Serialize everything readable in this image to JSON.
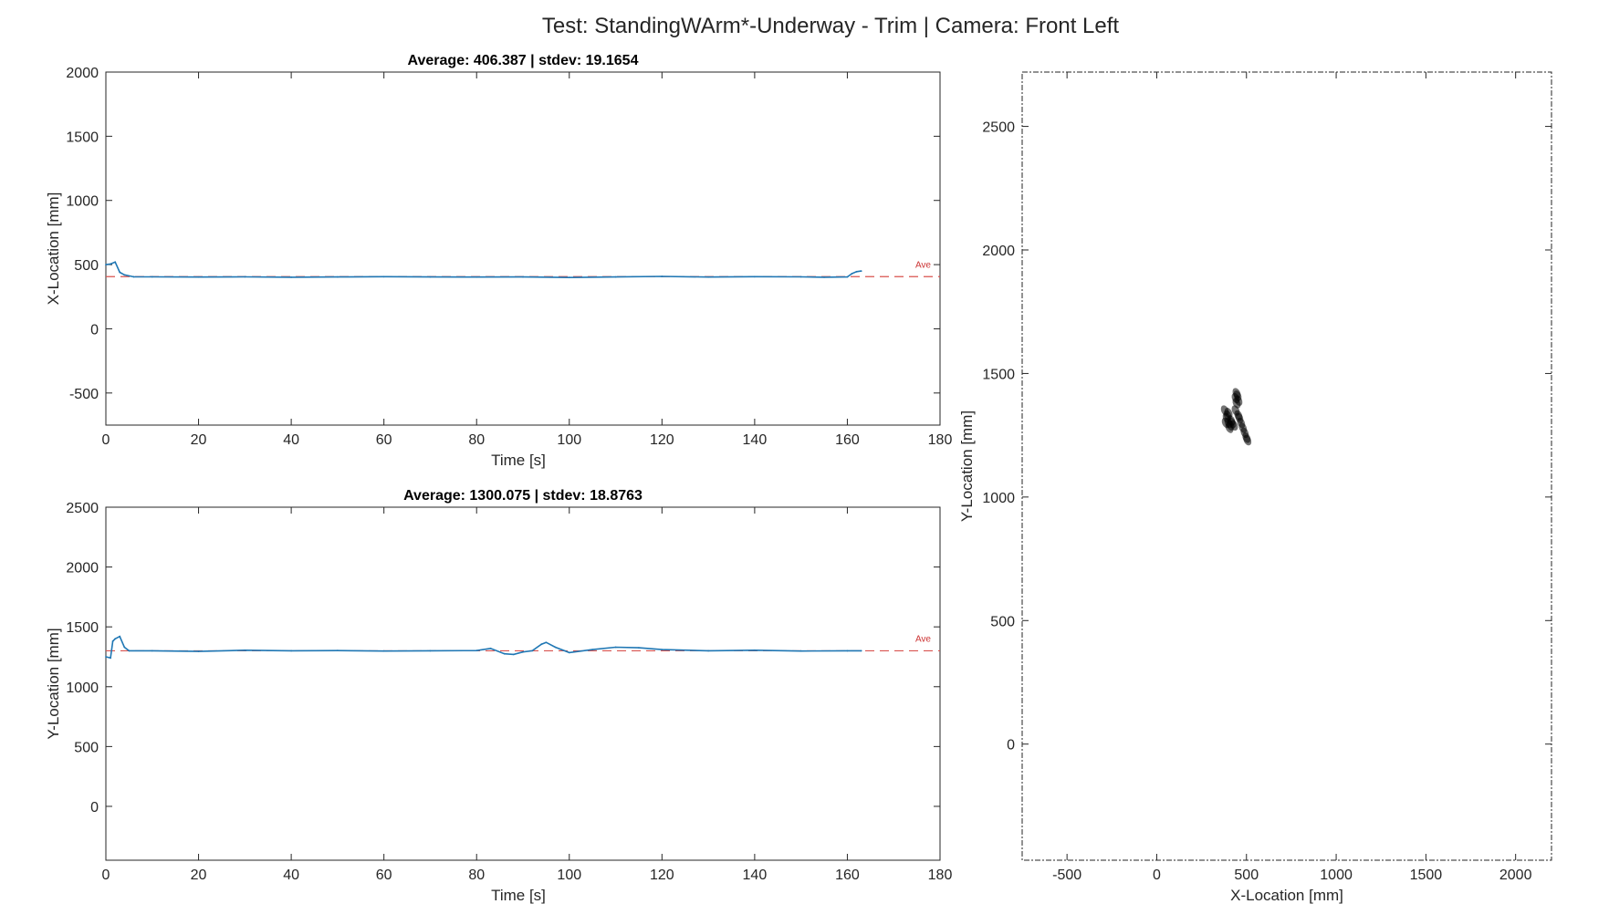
{
  "figure_title": "Test: StandingWArm*-Underway - Trim  |  Camera: Front Left",
  "chart_data": [
    {
      "type": "line",
      "title": "Average: 406.387  |  stdev: 19.1654",
      "xlabel": "Time [s]",
      "ylabel": "X-Location [mm]",
      "xlim": [
        0,
        180
      ],
      "ylim": [
        -750,
        2000
      ],
      "x_ticks": [
        0,
        20,
        40,
        60,
        80,
        100,
        120,
        140,
        160,
        180
      ],
      "y_ticks": [
        -500,
        0,
        500,
        1000,
        1500,
        2000
      ],
      "average": 406.387,
      "average_label": "Ave",
      "series": [
        {
          "color": "#1f77b4",
          "x": [
            0,
            1,
            2,
            3,
            4,
            6,
            10,
            20,
            30,
            40,
            50,
            60,
            70,
            80,
            90,
            100,
            110,
            120,
            130,
            140,
            150,
            155,
            160,
            161,
            162,
            163
          ],
          "y": [
            500,
            505,
            520,
            440,
            420,
            405,
            405,
            403,
            405,
            402,
            404,
            406,
            404,
            403,
            404,
            400,
            404,
            408,
            403,
            406,
            405,
            402,
            404,
            430,
            445,
            450
          ]
        }
      ]
    },
    {
      "type": "line",
      "title": "Average: 1300.075  |  stdev: 18.8763",
      "xlabel": "Time [s]",
      "ylabel": "Y-Location [mm]",
      "xlim": [
        0,
        180
      ],
      "ylim": [
        -450,
        2500
      ],
      "x_ticks": [
        0,
        20,
        40,
        60,
        80,
        100,
        120,
        140,
        160,
        180
      ],
      "y_ticks": [
        0,
        500,
        1000,
        1500,
        2000,
        2500
      ],
      "average": 1300.075,
      "average_label": "Ave",
      "series": [
        {
          "color": "#1f77b4",
          "x": [
            0,
            1,
            1.5,
            2,
            3,
            4,
            5,
            10,
            20,
            30,
            40,
            50,
            60,
            70,
            80,
            83,
            86,
            88,
            90,
            92,
            94,
            95,
            97,
            100,
            105,
            110,
            115,
            120,
            130,
            140,
            150,
            160,
            163
          ],
          "y": [
            1250,
            1240,
            1380,
            1400,
            1420,
            1330,
            1300,
            1300,
            1295,
            1305,
            1300,
            1302,
            1298,
            1300,
            1302,
            1320,
            1275,
            1270,
            1290,
            1300,
            1355,
            1370,
            1330,
            1285,
            1310,
            1330,
            1325,
            1310,
            1300,
            1305,
            1298,
            1300,
            1300
          ]
        }
      ]
    },
    {
      "type": "scatter",
      "xlabel": "X-Location [mm]",
      "ylabel": "Y-Location [mm]",
      "xlim": [
        -750,
        2200
      ],
      "ylim": [
        -470,
        2720
      ],
      "x_ticks": [
        -500,
        0,
        500,
        1000,
        1500,
        2000
      ],
      "y_ticks": [
        0,
        500,
        1000,
        1500,
        2000,
        2500
      ],
      "series": [
        {
          "color": "#000000",
          "x": [
            380,
            390,
            400,
            395,
            405,
            410,
            415,
            400,
            385,
            420,
            430,
            440,
            445,
            455,
            460,
            470,
            480,
            490,
            500,
            505,
            455,
            450,
            445,
            440
          ],
          "y": [
            1350,
            1320,
            1300,
            1330,
            1280,
            1290,
            1310,
            1340,
            1300,
            1300,
            1290,
            1350,
            1380,
            1330,
            1320,
            1300,
            1280,
            1260,
            1240,
            1230,
            1390,
            1410,
            1420,
            1400
          ]
        }
      ]
    }
  ]
}
